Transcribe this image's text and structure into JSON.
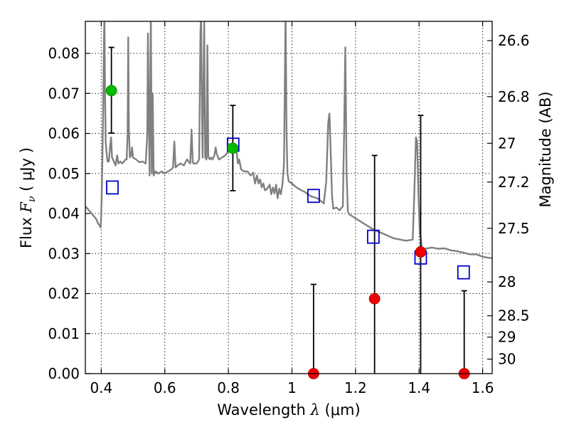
{
  "chart_data": {
    "type": "scatter",
    "xlabel_text": "Wavelength ",
    "xlabel_lambda": "λ",
    "xlabel_unit": " (μm)",
    "ylabel_text": "Flux ",
    "ylabel_F": "F",
    "ylabel_nu": "ν",
    "ylabel_unit": " ( μJy )",
    "y2label": "Magnitude (AB)",
    "xlim": [
      0.35,
      1.63
    ],
    "ylim": [
      0.0,
      0.088
    ],
    "xticks": [
      0.4,
      0.6,
      0.8,
      1.0,
      1.2,
      1.4,
      1.6
    ],
    "xtick_labels": [
      "0.4",
      "0.6",
      "0.8",
      "1",
      "1.2",
      "1.4",
      "1.6"
    ],
    "yticks": [
      0.0,
      0.01,
      0.02,
      0.03,
      0.04,
      0.05,
      0.06,
      0.07,
      0.08
    ],
    "ytick_labels": [
      "0.00",
      "0.01",
      "0.02",
      "0.03",
      "0.04",
      "0.05",
      "0.06",
      "0.07",
      "0.08"
    ],
    "mag_ticks": [
      26.6,
      26.8,
      27.0,
      27.2,
      27.5,
      28.0,
      28.5,
      29.0,
      30.0
    ],
    "mag_tick_labels": [
      "26.6",
      "26.8",
      "27",
      "27.2",
      "27.5",
      "28",
      "28.5",
      "29",
      "30"
    ],
    "grid": true,
    "colors": {
      "model": "#808080",
      "model_points": "#0000cc",
      "green": "#00bb00",
      "red": "#ee0000",
      "errorbar": "#000000"
    },
    "model_spectrum": [
      [
        0.35,
        0.0418
      ],
      [
        0.37,
        0.04
      ],
      [
        0.385,
        0.0385
      ],
      [
        0.39,
        0.0375
      ],
      [
        0.395,
        0.037
      ],
      [
        0.398,
        0.0365
      ],
      [
        0.4,
        0.0395
      ],
      [
        0.402,
        0.046
      ],
      [
        0.404,
        0.055
      ],
      [
        0.406,
        0.065
      ],
      [
        0.408,
        0.08
      ],
      [
        0.41,
        0.09
      ],
      [
        0.412,
        0.07
      ],
      [
        0.414,
        0.058
      ],
      [
        0.418,
        0.054
      ],
      [
        0.42,
        0.053
      ],
      [
        0.424,
        0.053
      ],
      [
        0.428,
        0.057
      ],
      [
        0.431,
        0.059
      ],
      [
        0.434,
        0.054
      ],
      [
        0.44,
        0.053
      ],
      [
        0.445,
        0.052
      ],
      [
        0.45,
        0.0545
      ],
      [
        0.454,
        0.0525
      ],
      [
        0.46,
        0.053
      ],
      [
        0.466,
        0.0525
      ],
      [
        0.472,
        0.053
      ],
      [
        0.476,
        0.0535
      ],
      [
        0.48,
        0.0535
      ],
      [
        0.483,
        0.06
      ],
      [
        0.485,
        0.084
      ],
      [
        0.487,
        0.061
      ],
      [
        0.49,
        0.054
      ],
      [
        0.494,
        0.0545
      ],
      [
        0.497,
        0.0565
      ],
      [
        0.5,
        0.054
      ],
      [
        0.51,
        0.0535
      ],
      [
        0.52,
        0.0528
      ],
      [
        0.53,
        0.053
      ],
      [
        0.54,
        0.0525
      ],
      [
        0.545,
        0.06
      ],
      [
        0.547,
        0.085
      ],
      [
        0.549,
        0.07
      ],
      [
        0.552,
        0.0495
      ],
      [
        0.556,
        0.09
      ],
      [
        0.559,
        0.05
      ],
      [
        0.562,
        0.07
      ],
      [
        0.565,
        0.0495
      ],
      [
        0.57,
        0.0505
      ],
      [
        0.58,
        0.05
      ],
      [
        0.59,
        0.0505
      ],
      [
        0.6,
        0.05
      ],
      [
        0.61,
        0.0505
      ],
      [
        0.62,
        0.051
      ],
      [
        0.626,
        0.0515
      ],
      [
        0.63,
        0.058
      ],
      [
        0.634,
        0.0515
      ],
      [
        0.64,
        0.052
      ],
      [
        0.65,
        0.0525
      ],
      [
        0.66,
        0.052
      ],
      [
        0.67,
        0.0535
      ],
      [
        0.68,
        0.0525
      ],
      [
        0.684,
        0.061
      ],
      [
        0.688,
        0.053
      ],
      [
        0.69,
        0.0525
      ],
      [
        0.7,
        0.0525
      ],
      [
        0.708,
        0.0535
      ],
      [
        0.712,
        0.085
      ],
      [
        0.714,
        0.09
      ],
      [
        0.717,
        0.065
      ],
      [
        0.719,
        0.054
      ],
      [
        0.724,
        0.088
      ],
      [
        0.727,
        0.054
      ],
      [
        0.731,
        0.0535
      ],
      [
        0.734,
        0.082
      ],
      [
        0.737,
        0.054
      ],
      [
        0.742,
        0.0535
      ],
      [
        0.745,
        0.054
      ],
      [
        0.75,
        0.0535
      ],
      [
        0.756,
        0.0545
      ],
      [
        0.76,
        0.0565
      ],
      [
        0.763,
        0.055
      ],
      [
        0.77,
        0.0535
      ],
      [
        0.78,
        0.054
      ],
      [
        0.79,
        0.0545
      ],
      [
        0.8,
        0.0555
      ],
      [
        0.81,
        0.056
      ],
      [
        0.82,
        0.0565
      ],
      [
        0.826,
        0.0555
      ],
      [
        0.83,
        0.0525
      ],
      [
        0.834,
        0.0535
      ],
      [
        0.84,
        0.051
      ],
      [
        0.85,
        0.0505
      ],
      [
        0.86,
        0.0505
      ],
      [
        0.87,
        0.0495
      ],
      [
        0.878,
        0.0502
      ],
      [
        0.884,
        0.0475
      ],
      [
        0.89,
        0.0495
      ],
      [
        0.895,
        0.0475
      ],
      [
        0.9,
        0.0485
      ],
      [
        0.905,
        0.0465
      ],
      [
        0.91,
        0.0475
      ],
      [
        0.915,
        0.0458
      ],
      [
        0.92,
        0.046
      ],
      [
        0.93,
        0.0472
      ],
      [
        0.935,
        0.0448
      ],
      [
        0.94,
        0.0465
      ],
      [
        0.945,
        0.045
      ],
      [
        0.95,
        0.0472
      ],
      [
        0.955,
        0.0438
      ],
      [
        0.96,
        0.0462
      ],
      [
        0.965,
        0.0448
      ],
      [
        0.97,
        0.0472
      ],
      [
        0.975,
        0.0525
      ],
      [
        0.978,
        0.075
      ],
      [
        0.98,
        0.09
      ],
      [
        0.983,
        0.06
      ],
      [
        0.986,
        0.05
      ],
      [
        0.99,
        0.048
      ],
      [
        1.0,
        0.0475
      ],
      [
        1.01,
        0.0468
      ],
      [
        1.02,
        0.0462
      ],
      [
        1.03,
        0.0458
      ],
      [
        1.04,
        0.0454
      ],
      [
        1.05,
        0.0448
      ],
      [
        1.06,
        0.0443
      ],
      [
        1.08,
        0.0438
      ],
      [
        1.09,
        0.0432
      ],
      [
        1.1,
        0.0425
      ],
      [
        1.108,
        0.048
      ],
      [
        1.114,
        0.0625
      ],
      [
        1.118,
        0.065
      ],
      [
        1.122,
        0.055
      ],
      [
        1.126,
        0.0445
      ],
      [
        1.13,
        0.0412
      ],
      [
        1.14,
        0.0415
      ],
      [
        1.15,
        0.0408
      ],
      [
        1.16,
        0.0418
      ],
      [
        1.164,
        0.06
      ],
      [
        1.168,
        0.0815
      ],
      [
        1.172,
        0.05
      ],
      [
        1.176,
        0.0405
      ],
      [
        1.18,
        0.0398
      ],
      [
        1.19,
        0.0393
      ],
      [
        1.2,
        0.0388
      ],
      [
        1.22,
        0.0378
      ],
      [
        1.24,
        0.0368
      ],
      [
        1.26,
        0.0358
      ],
      [
        1.28,
        0.0352
      ],
      [
        1.3,
        0.0345
      ],
      [
        1.32,
        0.0338
      ],
      [
        1.34,
        0.0335
      ],
      [
        1.36,
        0.0332
      ],
      [
        1.38,
        0.0335
      ],
      [
        1.385,
        0.045
      ],
      [
        1.39,
        0.059
      ],
      [
        1.394,
        0.058
      ],
      [
        1.398,
        0.045
      ],
      [
        1.402,
        0.036
      ],
      [
        1.41,
        0.0305
      ],
      [
        1.42,
        0.0312
      ],
      [
        1.44,
        0.0315
      ],
      [
        1.46,
        0.0312
      ],
      [
        1.48,
        0.0313
      ],
      [
        1.5,
        0.0308
      ],
      [
        1.52,
        0.0306
      ],
      [
        1.54,
        0.0302
      ],
      [
        1.56,
        0.0298
      ],
      [
        1.58,
        0.0298
      ],
      [
        1.6,
        0.0292
      ],
      [
        1.63,
        0.0288
      ]
    ],
    "model_points": [
      {
        "x": 0.435,
        "y": 0.0465
      },
      {
        "x": 0.815,
        "y": 0.0572
      },
      {
        "x": 1.068,
        "y": 0.0444
      },
      {
        "x": 1.256,
        "y": 0.0342
      },
      {
        "x": 1.405,
        "y": 0.029
      },
      {
        "x": 1.54,
        "y": 0.0253
      }
    ],
    "observed_green": [
      {
        "x": 0.432,
        "y": 0.0707,
        "err_low": 0.0601,
        "err_high": 0.0815
      },
      {
        "x": 0.814,
        "y": 0.0563,
        "err_low": 0.0457,
        "err_high": 0.067
      }
    ],
    "observed_red": [
      {
        "x": 1.068,
        "y": 0.0,
        "err_low": 0.0,
        "err_high": 0.0223
      },
      {
        "x": 1.26,
        "y": 0.0187,
        "err_low": 0.0,
        "err_high": 0.0545
      },
      {
        "x": 1.405,
        "y": 0.0304,
        "err_low": 0.0,
        "err_high": 0.0645
      },
      {
        "x": 1.542,
        "y": 0.0,
        "err_low": 0.0,
        "err_high": 0.0207
      }
    ]
  }
}
